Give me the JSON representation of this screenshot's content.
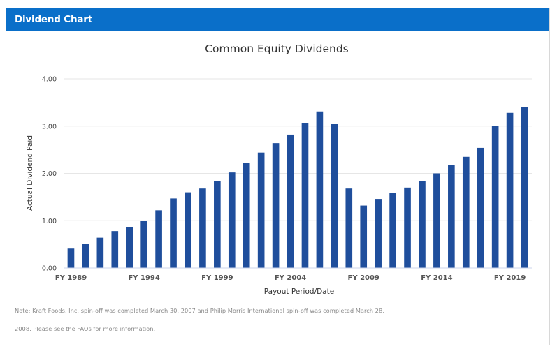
{
  "panel": {
    "title": "Dividend Chart"
  },
  "colors": {
    "header": "#0a6fc9",
    "bar": "#1f4e9c",
    "grid": "#e6e6e6"
  },
  "chart_data": {
    "type": "bar",
    "title": "Common Equity Dividends",
    "xlabel": "Payout Period/Date",
    "ylabel": "Actual Dividend Paid",
    "ylim": [
      0,
      4
    ],
    "yticks": [
      "0.00",
      "1.00",
      "2.00",
      "3.00",
      "4.00"
    ],
    "grid": true,
    "categories": [
      "FY 1989",
      "FY 1990",
      "FY 1991",
      "FY 1992",
      "FY 1993",
      "FY 1994",
      "FY 1995",
      "FY 1996",
      "FY 1997",
      "FY 1998",
      "FY 1999",
      "FY 2000",
      "FY 2001",
      "FY 2002",
      "FY 2003",
      "FY 2004",
      "FY 2005",
      "FY 2006",
      "FY 2007",
      "FY 2008",
      "FY 2009",
      "FY 2010",
      "FY 2011",
      "FY 2012",
      "FY 2013",
      "FY 2014",
      "FY 2015",
      "FY 2016",
      "FY 2017",
      "FY 2018",
      "FY 2019",
      "FY 2020"
    ],
    "xtick_labels": [
      "FY 1989",
      "FY 1994",
      "FY 1999",
      "FY 2004",
      "FY 2009",
      "FY 2014",
      "FY 2019"
    ],
    "xtick_indices": [
      0,
      5,
      10,
      15,
      20,
      25,
      30
    ],
    "values": [
      0.41,
      0.51,
      0.64,
      0.78,
      0.86,
      1.0,
      1.22,
      1.47,
      1.6,
      1.68,
      1.84,
      2.02,
      2.22,
      2.44,
      2.64,
      2.82,
      3.07,
      3.31,
      3.05,
      1.68,
      1.32,
      1.46,
      1.58,
      1.7,
      1.84,
      2.0,
      2.17,
      2.35,
      2.54,
      3.0,
      3.28,
      3.4
    ]
  },
  "note": {
    "line1": "Note: Kraft Foods, Inc. spin-off was completed March 30, 2007 and Philip Morris International spin-off was completed March 28,",
    "line2": "2008. Please see the FAQs for more information."
  }
}
